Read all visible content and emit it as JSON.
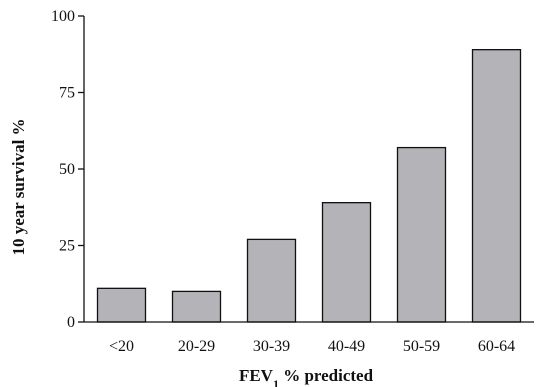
{
  "chart_data": {
    "type": "bar",
    "categories": [
      "<20",
      "20-29",
      "30-39",
      "40-49",
      "50-59",
      "60-64"
    ],
    "values": [
      11,
      10,
      27,
      39,
      57,
      89
    ],
    "ylim": [
      0,
      100
    ],
    "yticks": [
      "0",
      "25",
      "50",
      "75",
      "100"
    ],
    "ylabel": "10 year survival %",
    "xlabel_main": "FEV",
    "xlabel_sub": "1",
    "xlabel_rest": " % predicted",
    "grid": false,
    "bar_color": "#b3b3b8"
  }
}
